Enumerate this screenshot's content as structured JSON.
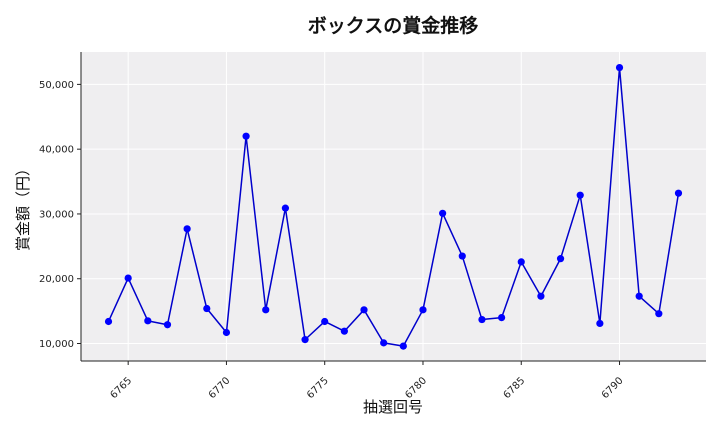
{
  "chart_data": {
    "type": "line",
    "title": "ボックスの賞金推移",
    "xlabel": "抽選回号",
    "ylabel": "賞金額（円）",
    "xlim": [
      6762.6,
      6794.4
    ],
    "ylim": [
      7300,
      55000
    ],
    "x_ticks": [
      6765,
      6770,
      6775,
      6780,
      6785,
      6790
    ],
    "x_tick_labels": [
      "6765",
      "6770",
      "6775",
      "6780",
      "6785",
      "6790"
    ],
    "y_ticks": [
      10000,
      20000,
      30000,
      40000,
      50000
    ],
    "y_tick_labels": [
      "10,000",
      "20,000",
      "30,000",
      "40,000",
      "50,000"
    ],
    "grid": true,
    "line_color": "#0000cc",
    "marker_color": "#0000ff",
    "plot_bg": "#efeef0",
    "x": [
      6764,
      6765,
      6766,
      6767,
      6768,
      6769,
      6770,
      6771,
      6772,
      6773,
      6774,
      6775,
      6776,
      6777,
      6778,
      6779,
      6780,
      6781,
      6782,
      6783,
      6784,
      6785,
      6786,
      6787,
      6788,
      6789,
      6790,
      6791,
      6792,
      6793
    ],
    "values": [
      13400,
      20100,
      13500,
      12900,
      27700,
      15400,
      11700,
      42000,
      15200,
      30900,
      10600,
      13400,
      11900,
      15200,
      10100,
      9600,
      15200,
      30100,
      23500,
      13700,
      14000,
      22600,
      17300,
      23100,
      32900,
      13100,
      52600,
      17300,
      14600,
      33200
    ]
  }
}
